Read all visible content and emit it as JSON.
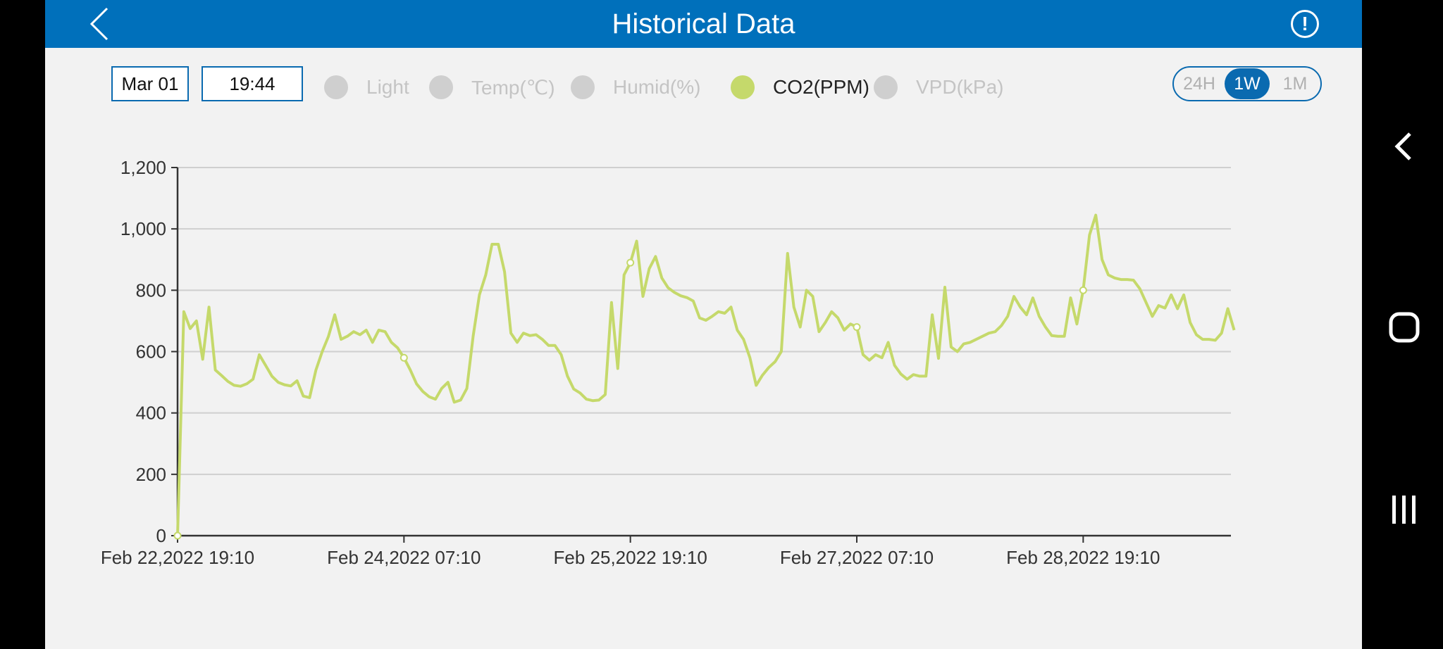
{
  "header": {
    "title": "Historical Data",
    "back_icon": "chevron-left-icon",
    "info_icon": "exclamation-circle-icon"
  },
  "controls": {
    "date": "Mar 01",
    "time": "19:44",
    "legend": [
      {
        "label": "Light",
        "active": false
      },
      {
        "label": "Temp(℃)",
        "active": false
      },
      {
        "label": "Humid(%)",
        "active": false
      },
      {
        "label": "CO2(PPM)",
        "active": true,
        "color": "#c5d96b"
      },
      {
        "label": "VPD(kPa)",
        "active": false
      }
    ],
    "range_options": [
      "24H",
      "1W",
      "1M"
    ],
    "range_selected": "1W"
  },
  "colors": {
    "header": "#0070bb",
    "accent": "#0a6ab0",
    "series": "#c5d96b",
    "background": "#f2f2f2"
  },
  "chart_data": {
    "type": "line",
    "title": "",
    "xlabel": "",
    "ylabel": "",
    "ylim": [
      0,
      1200
    ],
    "y_ticks": [
      "0",
      "200",
      "400",
      "600",
      "800",
      "1,000",
      "1,200"
    ],
    "y_tick_values": [
      0,
      200,
      400,
      600,
      800,
      1000,
      1200
    ],
    "x_ticks": [
      "Feb 22,2022 19:10",
      "Feb 24,2022 07:10",
      "Feb 25,2022 19:10",
      "Feb 27,2022 07:10",
      "Feb 28,2022 19:10"
    ],
    "x_start": "Feb 22,2022 19:10",
    "x_step": "1h",
    "grid": "horizontal",
    "series": [
      {
        "name": "CO2(PPM)",
        "values": [
          0,
          730,
          675,
          700,
          575,
          745,
          540,
          522,
          503,
          490,
          487,
          495,
          510,
          590,
          555,
          520,
          500,
          492,
          488,
          505,
          455,
          450,
          540,
          600,
          650,
          720,
          640,
          650,
          665,
          655,
          670,
          630,
          670,
          665,
          630,
          612,
          580,
          540,
          495,
          470,
          453,
          445,
          480,
          500,
          435,
          442,
          480,
          650,
          785,
          850,
          950,
          950,
          860,
          660,
          630,
          660,
          652,
          655,
          640,
          620,
          620,
          590,
          520,
          478,
          465,
          445,
          440,
          442,
          460,
          760,
          545,
          850,
          890,
          960,
          780,
          870,
          910,
          840,
          808,
          793,
          782,
          776,
          765,
          710,
          702,
          715,
          730,
          725,
          745,
          670,
          640,
          580,
          490,
          523,
          548,
          567,
          600,
          920,
          745,
          680,
          800,
          780,
          665,
          695,
          730,
          710,
          670,
          690,
          680,
          590,
          572,
          590,
          580,
          630,
          555,
          527,
          510,
          525,
          520,
          520,
          720,
          578,
          810,
          615,
          600,
          625,
          630,
          640,
          650,
          660,
          665,
          685,
          715,
          780,
          745,
          720,
          775,
          715,
          680,
          652,
          650,
          650,
          775,
          690,
          800,
          980,
          1045,
          900,
          850,
          840,
          835,
          835,
          833,
          805,
          760,
          715,
          750,
          742,
          785,
          740,
          785,
          695,
          655,
          640,
          640,
          637,
          660,
          740,
          670
        ]
      }
    ]
  }
}
